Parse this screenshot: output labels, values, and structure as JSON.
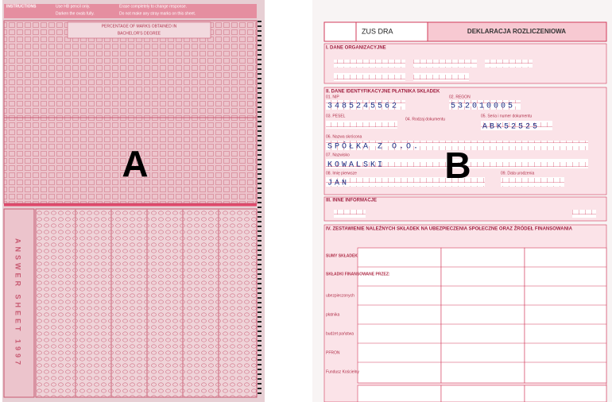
{
  "panel_a": {
    "label": "A",
    "header": "INSTRUCTIONS",
    "instructions": [
      "Use HB pencil only.",
      "Darken the ovals fully.",
      "Erase completely to change response.",
      "Do not make any stray marks on this sheet."
    ],
    "table_title": "PERCENTAGE OF MARKS OBTAINED IN",
    "degree": "BACHELOR'S DEGREE",
    "side_title": "ANSWER SHEET 1997"
  },
  "panel_b": {
    "label": "B",
    "form_code": "ZUS DRA",
    "form_title": "DEKLARACJA ROZLICZENIOWA",
    "sections": [
      "I. DANE ORGANIZACYJNE",
      "II. DANE IDENTYFIKACYJNE PŁATNIKA SKŁADEK",
      "III. INNE INFORMACJE",
      "IV. ZESTAWIENIE NALEŻNYCH SKŁADEK NA UBEZPIECZENIA SPOŁECZNE ORAZ ŹRÓDEŁ FINANSOWANIA"
    ],
    "fields": [
      "01. NIP",
      "02. REGON",
      "03. PESEL",
      "04. Rodzaj dokumentu",
      "05. Seria i numer dokumentu",
      "06. Nazwa skrócona",
      "07. Nazwisko",
      "08. Imię pierwsze",
      "09. Data urodzenia"
    ],
    "entries": [
      "3485245562",
      "532010005",
      "ABK52525",
      "SPÓŁKA Z O.O.",
      "KOWALSKI",
      "JAN"
    ],
    "rows": [
      "SUMY SKŁADEK",
      "SKŁADKI FINANSOWANE PRZEZ:",
      "ubezpieczonych",
      "płatnika",
      "budżet państwa",
      "PFRON",
      "Fundusz Kościelny"
    ]
  }
}
